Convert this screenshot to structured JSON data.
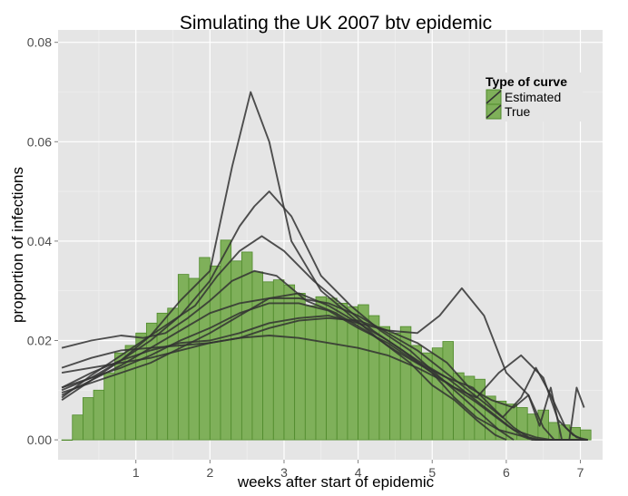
{
  "chart_data": {
    "type": "bar+line",
    "title": "Simulating the UK 2007 btv epidemic",
    "xlabel": "weeks after start of epidemic",
    "ylabel": "proportion of infections",
    "xlim": [
      -0.05,
      7.3
    ],
    "ylim": [
      -0.004,
      0.0825
    ],
    "x_ticks": [
      1,
      2,
      3,
      4,
      5,
      6,
      7
    ],
    "x_tick_labels": [
      "1",
      "2",
      "3",
      "4",
      "5",
      "6",
      "7"
    ],
    "y_ticks": [
      0.0,
      0.02,
      0.04,
      0.06,
      0.08
    ],
    "y_tick_labels": [
      "0.00",
      "0.02",
      "0.04",
      "0.06",
      "0.08"
    ],
    "grid": true,
    "legend": {
      "title": "Type of curve",
      "position": "top-right",
      "entries": [
        "Estimated",
        "True"
      ]
    },
    "colors": {
      "panel": "#e5e5e5",
      "grid": "#ffffff",
      "bar_fill": "#7fb05a",
      "bar_stroke": "#4f8a2b",
      "line": "#333333"
    },
    "bars": {
      "name": "True",
      "bin_width": 0.1429,
      "x": [
        0.0,
        0.143,
        0.286,
        0.429,
        0.571,
        0.714,
        0.857,
        1.0,
        1.143,
        1.286,
        1.429,
        1.571,
        1.714,
        1.857,
        2.0,
        2.143,
        2.286,
        2.429,
        2.571,
        2.714,
        2.857,
        3.0,
        3.143,
        3.286,
        3.429,
        3.571,
        3.714,
        3.857,
        4.0,
        4.143,
        4.286,
        4.429,
        4.571,
        4.714,
        4.857,
        5.0,
        5.143,
        5.286,
        5.429,
        5.571,
        5.714,
        5.857,
        6.0,
        6.143,
        6.286,
        6.429,
        6.571,
        6.714,
        6.857,
        7.0
      ],
      "values": [
        0.0,
        0.005,
        0.0085,
        0.01,
        0.0135,
        0.0175,
        0.019,
        0.0215,
        0.0235,
        0.0255,
        0.0265,
        0.0333,
        0.0325,
        0.0367,
        0.035,
        0.0402,
        0.036,
        0.0378,
        0.0338,
        0.0318,
        0.0322,
        0.0312,
        0.0295,
        0.027,
        0.0288,
        0.0285,
        0.0275,
        0.0268,
        0.0272,
        0.025,
        0.0228,
        0.0215,
        0.0228,
        0.019,
        0.0175,
        0.0185,
        0.0198,
        0.0135,
        0.0128,
        0.0122,
        0.0088,
        0.0078,
        0.0072,
        0.0065,
        0.0052,
        0.006,
        0.0035,
        0.003,
        0.0025,
        0.002
      ]
    },
    "series": [
      {
        "name": "Estimated 1",
        "x": [
          0.0,
          0.4,
          0.8,
          1.2,
          1.6,
          2.0,
          2.3,
          2.55,
          2.8,
          3.1,
          3.5,
          3.9,
          4.3,
          4.7,
          5.0,
          5.3,
          5.6,
          5.85,
          6.0
        ],
        "values": [
          0.0085,
          0.013,
          0.017,
          0.021,
          0.028,
          0.034,
          0.055,
          0.07,
          0.06,
          0.04,
          0.03,
          0.025,
          0.02,
          0.0155,
          0.011,
          0.008,
          0.004,
          0.001,
          0.0
        ]
      },
      {
        "name": "Estimated 2",
        "x": [
          0.0,
          0.4,
          0.8,
          1.2,
          1.6,
          2.0,
          2.4,
          2.6,
          2.8,
          3.1,
          3.5,
          3.9,
          4.3,
          4.7,
          5.0,
          5.3,
          5.6,
          5.9,
          6.1
        ],
        "values": [
          0.01,
          0.0125,
          0.016,
          0.02,
          0.025,
          0.032,
          0.043,
          0.047,
          0.05,
          0.045,
          0.033,
          0.027,
          0.022,
          0.018,
          0.014,
          0.01,
          0.006,
          0.002,
          0.0
        ]
      },
      {
        "name": "Estimated 3",
        "x": [
          0.0,
          0.4,
          0.8,
          1.2,
          1.6,
          2.0,
          2.4,
          2.8,
          3.2,
          3.6,
          4.0,
          4.4,
          4.8,
          5.1,
          5.4,
          5.7,
          6.0,
          6.3,
          6.5,
          6.65,
          6.8
        ],
        "values": [
          0.0105,
          0.0135,
          0.016,
          0.018,
          0.0195,
          0.02,
          0.0215,
          0.0235,
          0.0245,
          0.025,
          0.0235,
          0.022,
          0.0215,
          0.025,
          0.0305,
          0.025,
          0.0135,
          0.009,
          0.0025,
          0.0,
          0.0
        ]
      },
      {
        "name": "Estimated 4",
        "x": [
          0.0,
          0.4,
          0.8,
          1.2,
          1.6,
          2.0,
          2.4,
          2.8,
          3.2,
          3.6,
          4.0,
          4.4,
          4.8,
          5.2,
          5.5,
          5.8,
          6.1,
          6.3,
          6.45,
          6.6,
          6.75,
          6.9
        ],
        "values": [
          0.0145,
          0.0165,
          0.018,
          0.0185,
          0.019,
          0.0195,
          0.0205,
          0.0225,
          0.024,
          0.0245,
          0.024,
          0.022,
          0.0195,
          0.0155,
          0.0105,
          0.008,
          0.0065,
          0.009,
          0.0028,
          0.0105,
          0.0,
          0.0
        ]
      },
      {
        "name": "Estimated 5",
        "x": [
          0.0,
          0.4,
          0.8,
          1.1,
          1.4,
          1.7,
          2.0,
          2.3,
          2.6,
          2.9,
          3.3,
          3.7,
          4.1,
          4.5,
          4.9,
          5.3,
          5.6,
          5.9,
          6.2,
          6.5,
          6.7,
          6.9,
          7.05
        ],
        "values": [
          0.0185,
          0.02,
          0.021,
          0.0205,
          0.0215,
          0.0245,
          0.028,
          0.032,
          0.034,
          0.033,
          0.028,
          0.0255,
          0.022,
          0.018,
          0.0145,
          0.0105,
          0.0085,
          0.0135,
          0.017,
          0.0125,
          0.004,
          0.001,
          0.0
        ]
      },
      {
        "name": "Estimated 6",
        "x": [
          0.0,
          0.4,
          0.8,
          1.2,
          1.5,
          1.8,
          2.1,
          2.4,
          2.7,
          3.0,
          3.4,
          3.8,
          4.2,
          4.6,
          5.0,
          5.3,
          5.6,
          5.9,
          6.2,
          6.35,
          6.5,
          6.7,
          6.95,
          7.1
        ],
        "values": [
          0.008,
          0.012,
          0.016,
          0.021,
          0.024,
          0.027,
          0.033,
          0.038,
          0.041,
          0.038,
          0.032,
          0.027,
          0.022,
          0.018,
          0.0135,
          0.0085,
          0.0045,
          0.002,
          0.0008,
          0.0,
          0.0,
          0.0,
          0.0,
          0.0
        ]
      },
      {
        "name": "Estimated 7",
        "x": [
          0.0,
          0.4,
          0.8,
          1.2,
          1.6,
          2.0,
          2.4,
          2.8,
          3.2,
          3.6,
          4.0,
          4.4,
          4.8,
          5.1,
          5.4,
          5.7,
          5.95,
          6.2,
          6.4,
          6.6,
          6.8,
          6.95,
          7.1
        ],
        "values": [
          0.009,
          0.012,
          0.015,
          0.0185,
          0.022,
          0.0255,
          0.0275,
          0.0285,
          0.0285,
          0.0275,
          0.025,
          0.0215,
          0.018,
          0.0145,
          0.011,
          0.0075,
          0.0045,
          0.0085,
          0.0145,
          0.009,
          0.0025,
          0.0005,
          0.0
        ]
      },
      {
        "name": "Estimated 8",
        "x": [
          0.0,
          0.4,
          0.8,
          1.2,
          1.6,
          2.0,
          2.4,
          2.8,
          3.2,
          3.6,
          4.0,
          4.4,
          4.8,
          5.2,
          5.55,
          5.85,
          6.1,
          6.3,
          6.45,
          6.6,
          6.8,
          7.0,
          7.1
        ],
        "values": [
          0.0105,
          0.0125,
          0.0145,
          0.017,
          0.02,
          0.0225,
          0.0255,
          0.0275,
          0.0275,
          0.026,
          0.0225,
          0.0195,
          0.0155,
          0.0125,
          0.0105,
          0.006,
          0.0025,
          0.0005,
          0.0,
          0.0,
          0.0,
          0.0,
          0.0
        ]
      },
      {
        "name": "Estimated 9",
        "x": [
          0.0,
          0.4,
          0.8,
          1.2,
          1.6,
          2.0,
          2.4,
          2.8,
          3.2,
          3.6,
          4.0,
          4.4,
          4.8,
          5.2,
          5.5,
          5.8,
          6.1,
          6.4,
          6.6,
          6.7,
          6.85,
          6.95,
          7.05
        ],
        "values": [
          0.0095,
          0.0115,
          0.0135,
          0.0155,
          0.0185,
          0.0215,
          0.025,
          0.0285,
          0.0295,
          0.027,
          0.0235,
          0.02,
          0.016,
          0.0125,
          0.009,
          0.0055,
          0.002,
          0.0005,
          0.0,
          0.0,
          0.0,
          0.0105,
          0.0065
        ]
      },
      {
        "name": "Estimated 10",
        "x": [
          0.0,
          0.4,
          0.8,
          1.2,
          1.6,
          2.0,
          2.4,
          2.8,
          3.2,
          3.6,
          4.0,
          4.4,
          4.8,
          5.2,
          5.6,
          6.0,
          6.2,
          6.4,
          6.6,
          6.8,
          7.0,
          7.1
        ],
        "values": [
          0.0135,
          0.0145,
          0.0155,
          0.0165,
          0.018,
          0.0195,
          0.0205,
          0.021,
          0.0205,
          0.0195,
          0.0185,
          0.017,
          0.0145,
          0.0115,
          0.0075,
          0.003,
          0.001,
          0.0,
          0.0,
          0.0,
          0.0,
          0.0
        ]
      }
    ]
  }
}
